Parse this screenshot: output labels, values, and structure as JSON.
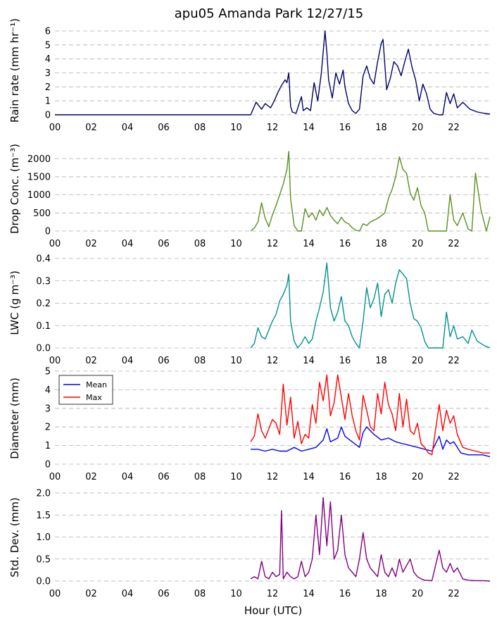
{
  "chart_data": {
    "title": "apu05 Amanda Park 12/27/15",
    "xlabel": "Hour (UTC)",
    "x_range": [
      0,
      24
    ],
    "x_ticks": [
      "00",
      "02",
      "04",
      "06",
      "08",
      "10",
      "12",
      "14",
      "16",
      "18",
      "20",
      "22"
    ],
    "panels": [
      {
        "type": "line",
        "ylabel": "Rain rate (mm hr⁻¹)",
        "ylim": [
          0,
          6
        ],
        "y_ticks": [
          "0",
          "1",
          "2",
          "3",
          "4",
          "5",
          "6"
        ],
        "grid": true,
        "series": [
          {
            "color": "#000066",
            "x": [
              0,
              10.8,
              11.1,
              11.4,
              11.6,
              11.9,
              12.1,
              12.3,
              12.5,
              12.7,
              12.8,
              12.9,
              13.0,
              13.1,
              13.3,
              13.6,
              13.7,
              13.9,
              14.1,
              14.3,
              14.5,
              14.7,
              14.9,
              15.0,
              15.1,
              15.3,
              15.5,
              15.7,
              15.9,
              16.0,
              16.2,
              16.4,
              16.6,
              16.8,
              17.0,
              17.2,
              17.4,
              17.6,
              17.8,
              18.0,
              18.1,
              18.3,
              18.5,
              18.7,
              18.9,
              19.1,
              19.3,
              19.5,
              19.7,
              19.9,
              20.1,
              20.3,
              20.5,
              20.7,
              20.9,
              21.2,
              21.4,
              21.6,
              21.8,
              22.0,
              22.2,
              22.5,
              22.9,
              23.3,
              23.7,
              24.0
            ],
            "y": [
              0,
              0,
              0.9,
              0.4,
              0.8,
              0.5,
              1.0,
              1.6,
              2.1,
              2.5,
              2.3,
              3.0,
              0.6,
              0.2,
              0.1,
              1.3,
              0.3,
              0.5,
              0.3,
              2.3,
              1.0,
              3.0,
              6.0,
              4.5,
              2.5,
              1.2,
              3.0,
              2.2,
              3.2,
              2.0,
              0.8,
              0.3,
              0.1,
              0.4,
              2.8,
              3.5,
              2.6,
              2.2,
              3.8,
              5.1,
              5.4,
              1.8,
              2.6,
              3.8,
              3.5,
              2.8,
              3.8,
              4.7,
              3.4,
              2.5,
              1.0,
              2.2,
              1.5,
              0.4,
              0.1,
              0.0,
              0.0,
              1.6,
              0.8,
              1.5,
              0.5,
              0.9,
              0.4,
              0.2,
              0.1,
              0.05
            ]
          }
        ]
      },
      {
        "type": "line",
        "ylabel": "Drop Conc. (m⁻³)",
        "ylim": [
          0,
          2200
        ],
        "y_ticks": [
          "0",
          "500",
          "1000",
          "1500",
          "2000"
        ],
        "grid": true,
        "series": [
          {
            "color": "#5a8f1e",
            "x": [
              10.8,
              11.0,
              11.2,
              11.4,
              11.6,
              11.8,
              12.0,
              12.2,
              12.4,
              12.6,
              12.8,
              12.9,
              13.0,
              13.2,
              13.4,
              13.6,
              13.8,
              14.0,
              14.2,
              14.4,
              14.6,
              14.8,
              15.0,
              15.2,
              15.4,
              15.6,
              15.8,
              16.0,
              16.2,
              16.4,
              16.6,
              16.8,
              17.0,
              17.2,
              17.4,
              17.6,
              17.8,
              18.0,
              18.2,
              18.4,
              18.6,
              18.8,
              19.0,
              19.2,
              19.4,
              19.6,
              19.8,
              20.0,
              20.2,
              20.4,
              20.6,
              20.8,
              21.2,
              21.4,
              21.6,
              21.8,
              22.0,
              22.2,
              22.5,
              22.8,
              23.0,
              23.2,
              23.5,
              23.8,
              24.0
            ],
            "y": [
              0,
              80,
              250,
              780,
              350,
              120,
              450,
              700,
              1000,
              1300,
              1700,
              2200,
              900,
              150,
              0,
              0,
              620,
              380,
              500,
              300,
              580,
              420,
              650,
              430,
              300,
              200,
              380,
              250,
              200,
              90,
              20,
              0,
              200,
              150,
              250,
              300,
              350,
              420,
              500,
              900,
              1150,
              1500,
              2050,
              1700,
              1600,
              1050,
              850,
              1200,
              700,
              500,
              0,
              0,
              0,
              0,
              0,
              1000,
              300,
              150,
              500,
              50,
              0,
              1600,
              600,
              0,
              400
            ]
          }
        ]
      },
      {
        "type": "line",
        "ylabel": "LWC (g m⁻³)",
        "ylim": [
          0,
          0.4
        ],
        "y_ticks": [
          "0.0",
          "0.1",
          "0.2",
          "0.3",
          "0.4"
        ],
        "grid": true,
        "series": [
          {
            "color": "#009090",
            "x": [
              10.8,
              11.0,
              11.2,
              11.4,
              11.6,
              11.8,
              12.0,
              12.2,
              12.4,
              12.6,
              12.8,
              12.9,
              13.0,
              13.2,
              13.4,
              13.6,
              13.8,
              14.0,
              14.2,
              14.4,
              14.6,
              14.8,
              15.0,
              15.2,
              15.4,
              15.6,
              15.8,
              16.0,
              16.2,
              16.4,
              16.6,
              16.8,
              17.0,
              17.2,
              17.4,
              17.6,
              17.8,
              18.0,
              18.2,
              18.4,
              18.6,
              18.8,
              19.0,
              19.2,
              19.4,
              19.6,
              19.8,
              20.0,
              20.2,
              20.4,
              20.6,
              20.8,
              21.2,
              21.4,
              21.6,
              21.8,
              22.0,
              22.2,
              22.5,
              22.8,
              23.0,
              23.3,
              23.7,
              24.0
            ],
            "y": [
              0,
              0.02,
              0.09,
              0.05,
              0.04,
              0.08,
              0.12,
              0.15,
              0.21,
              0.24,
              0.28,
              0.33,
              0.12,
              0.03,
              0.0,
              0.02,
              0.05,
              0.02,
              0.04,
              0.12,
              0.18,
              0.25,
              0.38,
              0.18,
              0.12,
              0.16,
              0.23,
              0.12,
              0.1,
              0.05,
              0.02,
              0.0,
              0.12,
              0.27,
              0.18,
              0.22,
              0.29,
              0.14,
              0.24,
              0.26,
              0.2,
              0.29,
              0.35,
              0.33,
              0.31,
              0.2,
              0.13,
              0.12,
              0.09,
              0.03,
              0.0,
              0.0,
              0.0,
              0.0,
              0.16,
              0.05,
              0.1,
              0.04,
              0.05,
              0.02,
              0.08,
              0.03,
              0.01,
              0.0
            ]
          }
        ]
      },
      {
        "type": "line",
        "ylabel": "Diameter (mm)",
        "ylim": [
          0,
          5
        ],
        "y_ticks": [
          "0",
          "1",
          "2",
          "3",
          "4",
          "5"
        ],
        "grid": true,
        "legend": "upper-left",
        "series": [
          {
            "name": "Mean",
            "color": "#0000ff",
            "x": [
              10.8,
              11.2,
              11.6,
              12.0,
              12.4,
              12.8,
              13.2,
              13.6,
              14.0,
              14.4,
              14.8,
              15.0,
              15.2,
              15.6,
              15.8,
              16.0,
              16.4,
              16.8,
              17.0,
              17.2,
              17.6,
              18.0,
              18.4,
              18.8,
              19.2,
              19.6,
              20.0,
              20.4,
              20.8,
              21.2,
              21.4,
              21.6,
              21.8,
              22.0,
              22.4,
              22.8,
              23.2,
              23.6,
              24.0
            ],
            "y": [
              0.8,
              0.8,
              0.7,
              0.8,
              0.7,
              0.7,
              0.9,
              0.7,
              0.8,
              0.9,
              1.3,
              1.9,
              1.2,
              1.4,
              2.0,
              1.5,
              1.2,
              0.9,
              1.7,
              2.0,
              1.6,
              1.3,
              1.4,
              1.2,
              1.1,
              1.0,
              0.9,
              0.8,
              0.7,
              1.5,
              0.8,
              1.3,
              1.1,
              1.2,
              0.6,
              0.5,
              0.5,
              0.5,
              0.4
            ]
          },
          {
            "name": "Max",
            "color": "#ff0000",
            "x": [
              10.8,
              11.0,
              11.2,
              11.4,
              11.6,
              11.8,
              12.0,
              12.2,
              12.4,
              12.6,
              12.8,
              13.0,
              13.2,
              13.4,
              13.6,
              13.8,
              14.0,
              14.2,
              14.4,
              14.6,
              14.8,
              15.0,
              15.2,
              15.4,
              15.6,
              15.8,
              16.0,
              16.2,
              16.4,
              16.6,
              16.8,
              17.0,
              17.2,
              17.4,
              17.6,
              17.8,
              18.0,
              18.2,
              18.4,
              18.6,
              18.8,
              19.0,
              19.2,
              19.4,
              19.6,
              19.8,
              20.0,
              20.2,
              20.4,
              20.6,
              20.8,
              21.2,
              21.4,
              21.6,
              21.8,
              22.0,
              22.2,
              22.5,
              22.8,
              23.2,
              23.6,
              24.0
            ],
            "y": [
              1.2,
              1.5,
              2.7,
              1.8,
              1.4,
              1.9,
              2.4,
              2.2,
              1.6,
              4.3,
              2.1,
              3.6,
              1.4,
              2.3,
              1.1,
              1.6,
              1.4,
              3.2,
              2.2,
              4.4,
              3.4,
              4.8,
              2.6,
              3.3,
              4.8,
              3.6,
              2.4,
              3.8,
              2.6,
              1.8,
              1.3,
              3.7,
              2.9,
              2.0,
              1.8,
              3.8,
              2.7,
              4.4,
              3.2,
              2.7,
              1.8,
              3.8,
              2.0,
              3.5,
              1.8,
              1.6,
              2.2,
              1.1,
              0.9,
              0.6,
              0.5,
              3.2,
              1.8,
              2.9,
              2.2,
              2.6,
              1.6,
              0.9,
              0.8,
              0.7,
              0.6,
              0.6
            ]
          }
        ]
      },
      {
        "type": "line",
        "ylabel": "Std. Dev. (mm)",
        "ylim": [
          0,
          2.0
        ],
        "y_ticks": [
          "0.0",
          "0.5",
          "1.0",
          "1.5",
          "2.0"
        ],
        "grid": true,
        "series": [
          {
            "color": "#800080",
            "x": [
              10.8,
              11.0,
              11.2,
              11.4,
              11.6,
              11.8,
              12.0,
              12.2,
              12.4,
              12.5,
              12.6,
              12.8,
              13.0,
              13.2,
              13.4,
              13.6,
              13.8,
              14.0,
              14.2,
              14.4,
              14.6,
              14.8,
              15.0,
              15.2,
              15.4,
              15.6,
              15.8,
              16.0,
              16.2,
              16.4,
              16.6,
              16.8,
              17.0,
              17.2,
              17.4,
              17.6,
              17.8,
              18.0,
              18.2,
              18.4,
              18.6,
              18.8,
              19.0,
              19.2,
              19.4,
              19.6,
              19.8,
              20.0,
              20.2,
              20.4,
              20.8,
              21.2,
              21.4,
              21.6,
              21.8,
              22.0,
              22.2,
              22.5,
              22.8,
              23.2,
              23.6,
              24.0
            ],
            "y": [
              0.05,
              0.1,
              0.05,
              0.45,
              0.1,
              0.05,
              0.2,
              0.1,
              0.15,
              1.6,
              0.05,
              0.2,
              0.1,
              0.05,
              0.1,
              0.45,
              0.1,
              0.2,
              0.5,
              1.5,
              0.6,
              1.9,
              0.8,
              1.8,
              0.5,
              0.7,
              1.5,
              0.6,
              0.3,
              0.2,
              0.1,
              0.5,
              1.1,
              0.5,
              0.3,
              0.2,
              0.1,
              0.6,
              0.2,
              0.1,
              0.3,
              0.1,
              0.5,
              0.2,
              0.35,
              0.5,
              0.2,
              0.1,
              0.05,
              0.02,
              0.01,
              0.7,
              0.3,
              0.2,
              0.4,
              0.2,
              0.3,
              0.05,
              0.02,
              0.01,
              0.01,
              0.0
            ]
          }
        ]
      }
    ]
  }
}
